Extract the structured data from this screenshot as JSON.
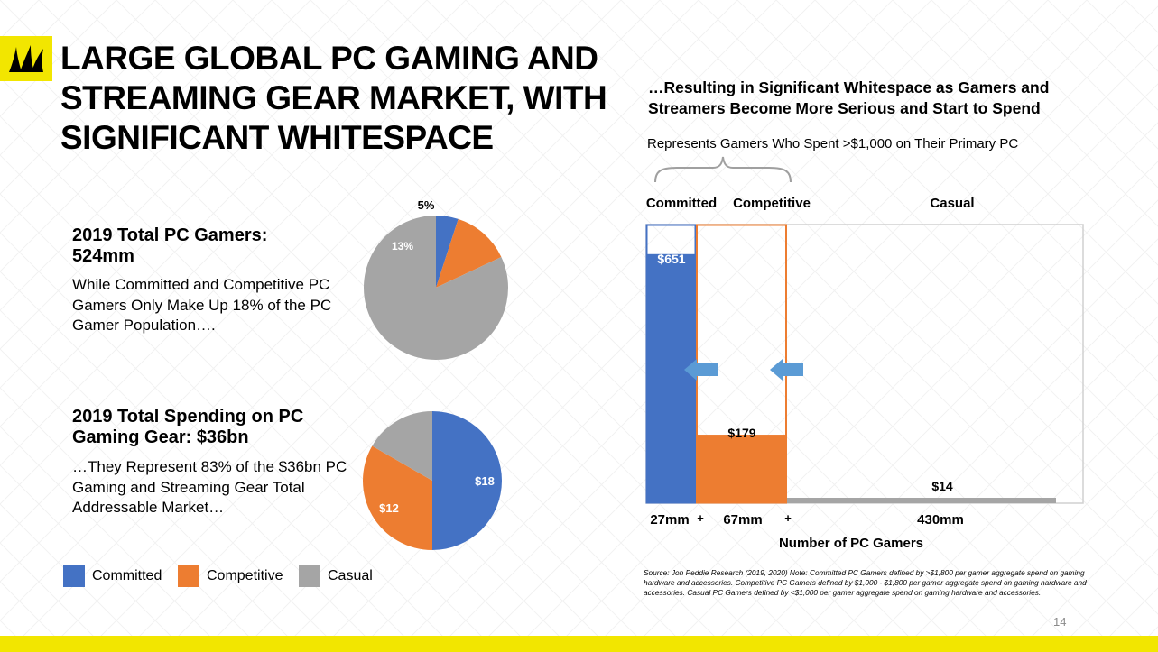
{
  "slide": {
    "title": "LARGE GLOBAL PC GAMING AND STREAMING GEAR MARKET, WITH SIGNIFICANT WHITESPACE",
    "page_number": "14",
    "accent_color": "#f2e600"
  },
  "left": {
    "gamers_heading": "2019 Total PC Gamers: 524mm",
    "gamers_body": "While Committed and Competitive PC Gamers Only Make Up 18% of the PC Gamer Population….",
    "spending_heading": "2019 Total Spending on PC Gaming Gear: $36bn",
    "spending_body": "…They Represent 83% of the $36bn PC Gaming and Streaming Gear Total Addressable Market…"
  },
  "legend": [
    {
      "label": "Committed",
      "color": "#4472c4"
    },
    {
      "label": "Competitive",
      "color": "#ed7d31"
    },
    {
      "label": "Casual",
      "color": "#a5a5a5"
    }
  ],
  "right": {
    "heading": "…Resulting in Significant Whitespace as Gamers and Streamers Become More Serious and Start to Spend",
    "represents": "Represents Gamers Who Spent >$1,000 on Their Primary PC",
    "source": "Source: Jon Peddie Research (2019, 2020) Note: Committed PC Gamers defined by >$1,800 per gamer aggregate spend on gaming hardware and accessories. Competitive PC Gamers defined by $1,000 - $1,800 per gamer aggregate spend on gaming hardware and accessories. Casual PC Gamers defined by <$1,000 per gamer aggregate spend on gaming hardware and accessories."
  },
  "chart_data": [
    {
      "type": "pie",
      "categories": [
        "Committed",
        "Competitive",
        "Casual"
      ],
      "values": [
        5,
        13,
        82
      ],
      "data_labels": [
        "5%",
        "13%",
        ""
      ],
      "colors": [
        "#4472c4",
        "#ed7d31",
        "#a5a5a5"
      ]
    },
    {
      "type": "pie",
      "categories": [
        "Committed",
        "Competitive",
        "Casual"
      ],
      "values": [
        18,
        12,
        6
      ],
      "data_labels": [
        "$18",
        "$12",
        ""
      ],
      "colors": [
        "#4472c4",
        "#ed7d31",
        "#a5a5a5"
      ]
    },
    {
      "type": "bar",
      "categories": [
        "Committed",
        "Competitive",
        "Casual"
      ],
      "values": [
        651,
        179,
        14
      ],
      "data_labels": [
        "$651",
        "$179",
        "$14"
      ],
      "widths": [
        27,
        67,
        430
      ],
      "width_labels": [
        "27mm",
        "67mm",
        "430mm"
      ],
      "separators": [
        "+",
        "+"
      ],
      "xlabel": "Number of PC Gamers",
      "ylabel": "",
      "ylim": [
        0,
        700
      ],
      "colors": [
        "#4472c4",
        "#ed7d31",
        "#a5a5a5"
      ]
    }
  ]
}
